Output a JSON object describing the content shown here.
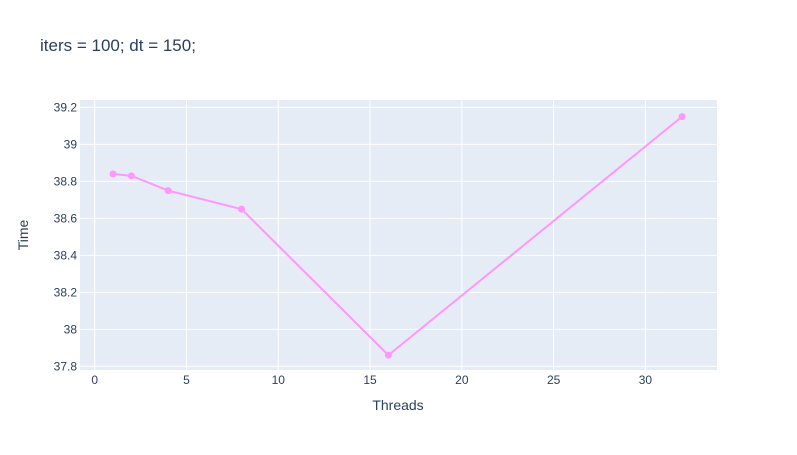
{
  "chart_data": {
    "type": "line",
    "title": "iters = 100; dt = 150;",
    "xlabel": "Threads",
    "ylabel": "Time",
    "xlim": [
      -0.8,
      33.9
    ],
    "ylim": [
      37.78,
      39.24
    ],
    "x_ticks": [
      0,
      5,
      10,
      15,
      20,
      25,
      30
    ],
    "x_tick_labels": [
      "0",
      "5",
      "10",
      "15",
      "20",
      "25",
      "30"
    ],
    "y_ticks": [
      37.8,
      38,
      38.2,
      38.4,
      38.6,
      38.8,
      39,
      39.2
    ],
    "y_tick_labels": [
      "37.8",
      "38",
      "38.2",
      "38.4",
      "38.6",
      "38.8",
      "39",
      "39.2"
    ],
    "grid": true,
    "legend": "none",
    "series": [
      {
        "x": [
          1,
          2,
          4,
          8,
          16,
          32
        ],
        "y": [
          38.84,
          38.83,
          38.75,
          38.65,
          37.86,
          39.15
        ],
        "color": "#ff97ff",
        "mode": "lines+markers"
      }
    ]
  },
  "colors": {
    "plot_background": "#e5ecf6",
    "grid": "#ffffff",
    "text": "#2a3f5f"
  }
}
